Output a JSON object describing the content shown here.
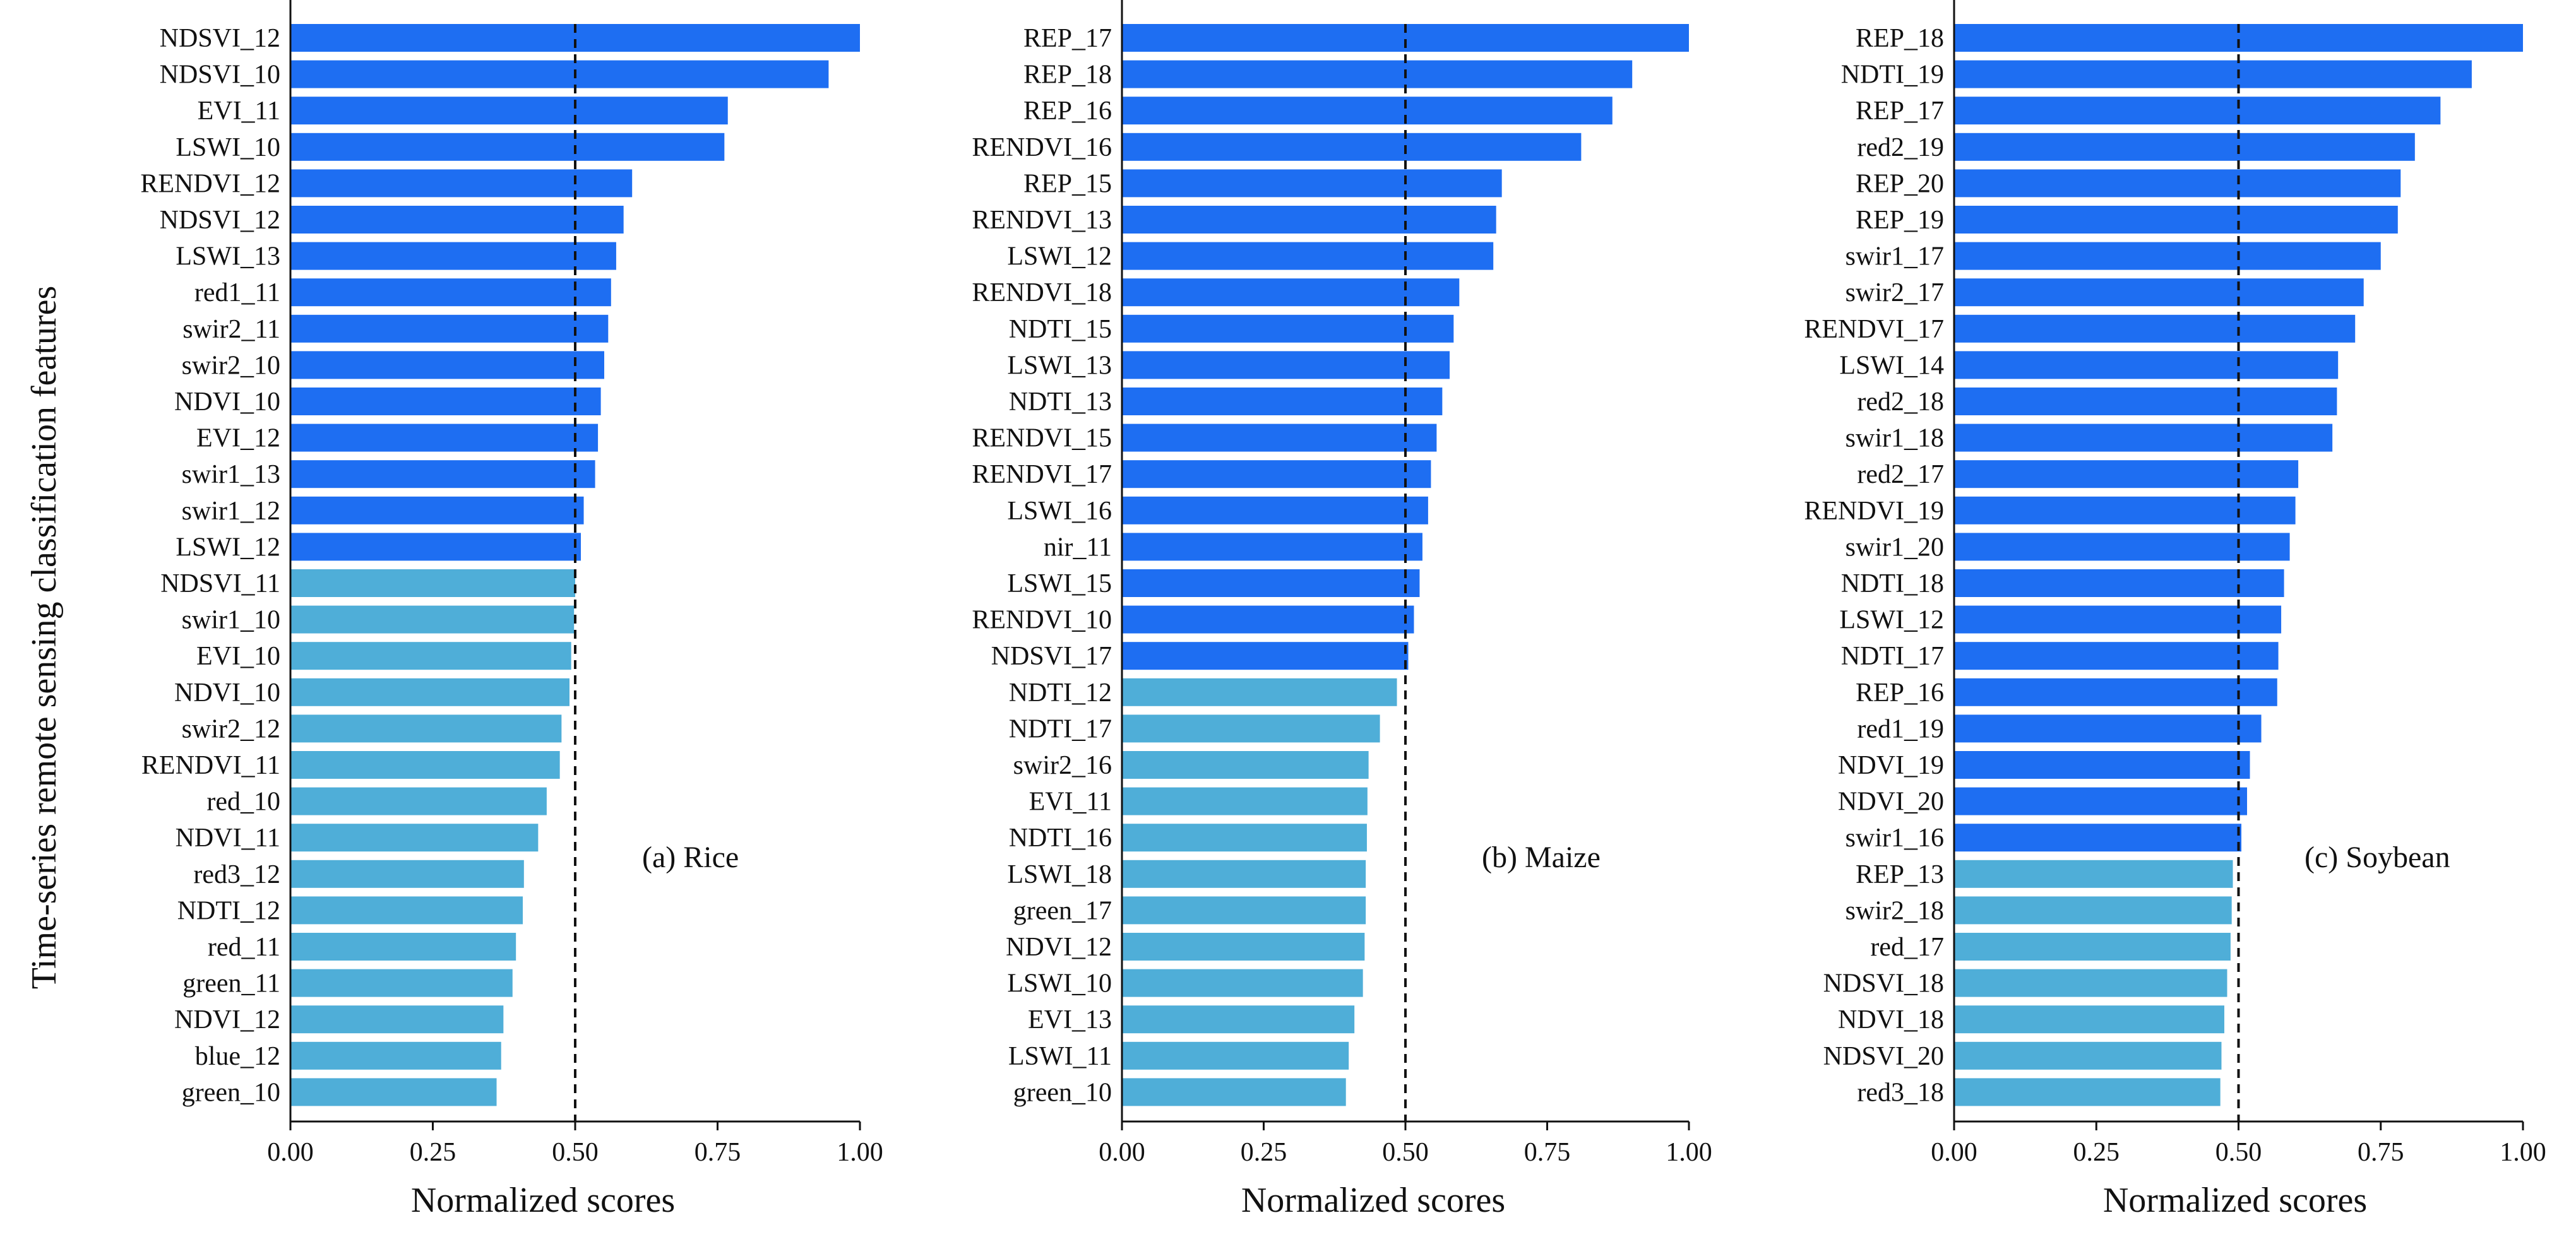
{
  "figure": {
    "ylabel": "Time-series remote sensing classification features"
  },
  "chart_data": [
    {
      "type": "bar",
      "orientation": "horizontal",
      "panel_label": "(a) Rice",
      "xlabel": "Normalized scores",
      "ylabel": "Time-series remote sensing classification features",
      "xlim": [
        0,
        1
      ],
      "xticks": [
        "0.00",
        "0.25",
        "0.50",
        "0.75",
        "1.00"
      ],
      "threshold": 0.5,
      "colors": {
        "above": "#1e6ef2",
        "below": "#4faed8"
      },
      "categories": [
        "NDSVI_12",
        "NDSVI_10",
        "EVI_11",
        "LSWI_10",
        "RENDVI_12",
        "NDSVI_12",
        "LSWI_13",
        "red1_11",
        "swir2_11",
        "swir2_10",
        "NDVI_10",
        "EVI_12",
        "swir1_13",
        "swir1_12",
        "LSWI_12",
        "NDSVI_11",
        "swir1_10",
        "EVI_10",
        "NDVI_10",
        "swir2_12",
        "RENDVI_11",
        "red_10",
        "NDVI_11",
        "red3_12",
        "NDTI_12",
        "red_11",
        "green_11",
        "NDVI_12",
        "blue_12",
        "green_10"
      ],
      "values": [
        1.0,
        0.945,
        0.768,
        0.762,
        0.6,
        0.585,
        0.572,
        0.563,
        0.558,
        0.551,
        0.545,
        0.54,
        0.535,
        0.515,
        0.51,
        0.5,
        0.498,
        0.493,
        0.49,
        0.476,
        0.473,
        0.45,
        0.435,
        0.41,
        0.408,
        0.396,
        0.39,
        0.374,
        0.37,
        0.362
      ]
    },
    {
      "type": "bar",
      "orientation": "horizontal",
      "panel_label": "(b) Maize",
      "xlabel": "Normalized scores",
      "xlim": [
        0,
        1
      ],
      "xticks": [
        "0.00",
        "0.25",
        "0.50",
        "0.75",
        "1.00"
      ],
      "threshold": 0.5,
      "colors": {
        "above": "#1e6ef2",
        "below": "#4faed8"
      },
      "categories": [
        "REP_17",
        "REP_18",
        "REP_16",
        "RENDVI_16",
        "REP_15",
        "RENDVI_13",
        "LSWI_12",
        "RENDVI_18",
        "NDTI_15",
        "LSWI_13",
        "NDTI_13",
        "RENDVI_15",
        "RENDVI_17",
        "LSWI_16",
        "nir_11",
        "LSWI_15",
        "RENDVI_10",
        "NDSVI_17",
        "NDTI_12",
        "NDTI_17",
        "swir2_16",
        "EVI_11",
        "NDTI_16",
        "LSWI_18",
        "green_17",
        "NDVI_12",
        "LSWI_10",
        "EVI_13",
        "LSWI_11",
        "green_10"
      ],
      "values": [
        1.0,
        0.9,
        0.865,
        0.81,
        0.67,
        0.66,
        0.655,
        0.595,
        0.585,
        0.578,
        0.565,
        0.555,
        0.545,
        0.54,
        0.53,
        0.525,
        0.515,
        0.505,
        0.485,
        0.455,
        0.435,
        0.433,
        0.432,
        0.43,
        0.43,
        0.428,
        0.425,
        0.41,
        0.4,
        0.395
      ]
    },
    {
      "type": "bar",
      "orientation": "horizontal",
      "panel_label": "(c) Soybean",
      "xlabel": "Normalized scores",
      "xlim": [
        0,
        1
      ],
      "xticks": [
        "0.00",
        "0.25",
        "0.50",
        "0.75",
        "1.00"
      ],
      "threshold": 0.5,
      "colors": {
        "above": "#1e6ef2",
        "below": "#4faed8"
      },
      "categories": [
        "REP_18",
        "NDTI_19",
        "REP_17",
        "red2_19",
        "REP_20",
        "REP_19",
        "swir1_17",
        "swir2_17",
        "RENDVI_17",
        "LSWI_14",
        "red2_18",
        "swir1_18",
        "red2_17",
        "RENDVI_19",
        "swir1_20",
        "NDTI_18",
        "LSWI_12",
        "NDTI_17",
        "REP_16",
        "red1_19",
        "NDVI_19",
        "NDVI_20",
        "swir1_16",
        "REP_13",
        "swir2_18",
        "red_17",
        "NDSVI_18",
        "NDVI_18",
        "NDSVI_20",
        "red3_18"
      ],
      "values": [
        1.0,
        0.91,
        0.855,
        0.81,
        0.785,
        0.78,
        0.75,
        0.72,
        0.705,
        0.675,
        0.673,
        0.665,
        0.605,
        0.6,
        0.59,
        0.58,
        0.575,
        0.57,
        0.568,
        0.54,
        0.52,
        0.515,
        0.505,
        0.49,
        0.488,
        0.486,
        0.48,
        0.475,
        0.47,
        0.468
      ]
    }
  ]
}
